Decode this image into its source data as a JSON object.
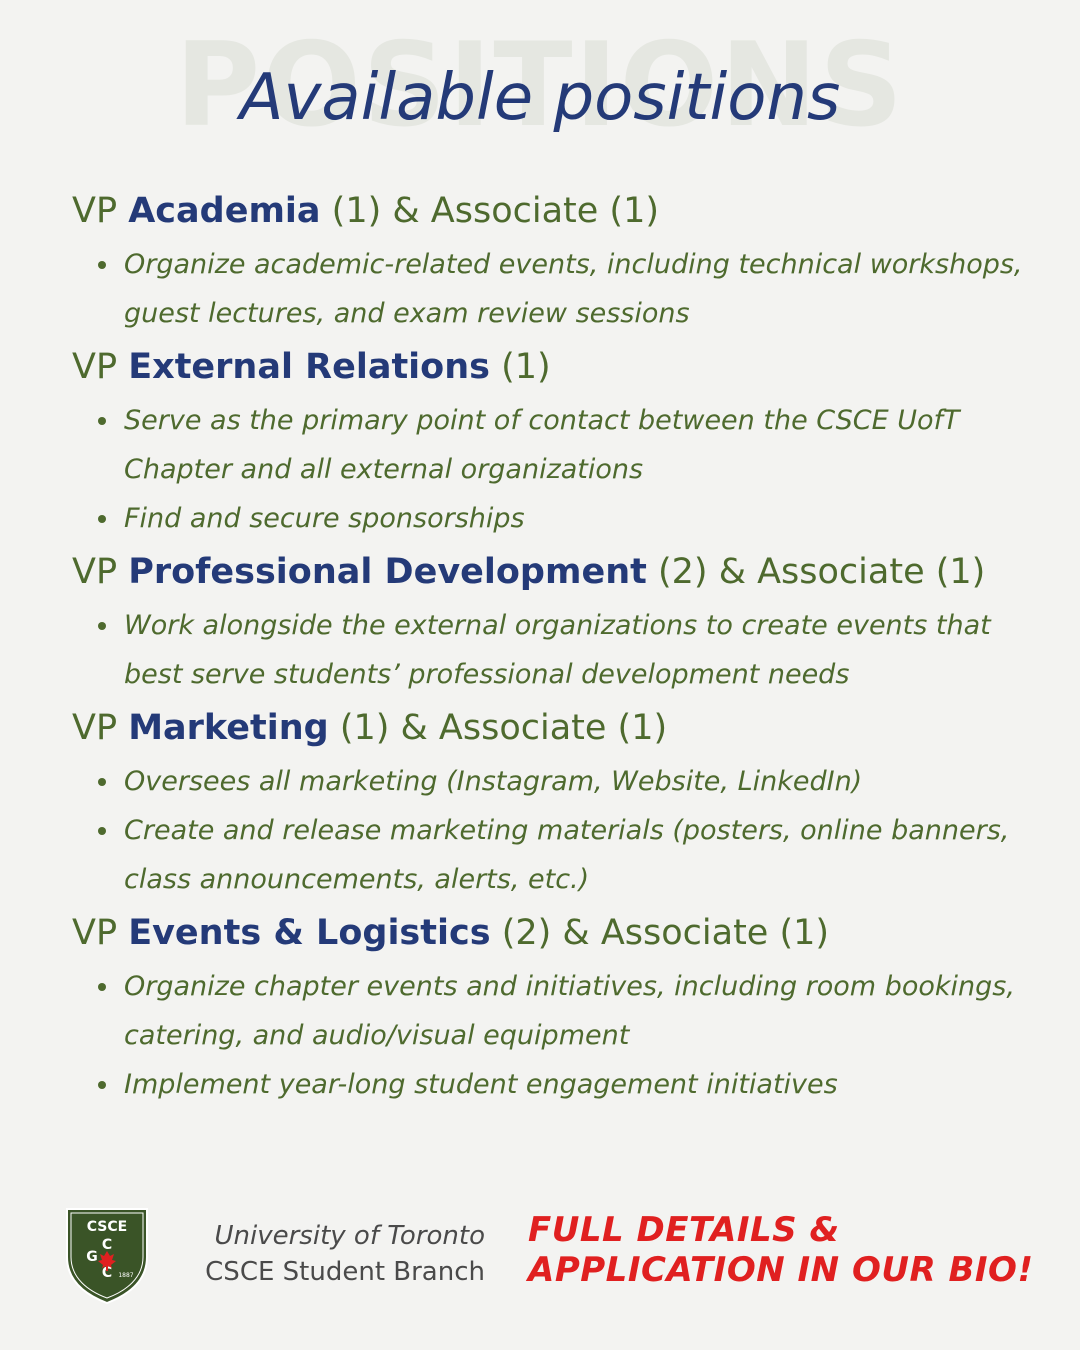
{
  "background_word": "POSITIONS",
  "title": "Available positions",
  "colors": {
    "navy": "#243a78",
    "green": "#4e6a2e",
    "red": "#e02020",
    "background": "#f3f3f1"
  },
  "positions": [
    {
      "prefix": "VP",
      "name": "Academia",
      "count": " (1) & Associate (1)",
      "duties": [
        "Organize academic-related events, including technical workshops, guest lectures, and exam review sessions"
      ]
    },
    {
      "prefix": "VP",
      "name": "External Relations",
      "count": " (1)",
      "duties": [
        "Serve as the primary point of contact between the CSCE UofT Chapter and all external organizations",
        "Find and secure sponsorships"
      ]
    },
    {
      "prefix": "VP",
      "name": "Professional Development",
      "count": " (2) & Associate (1)",
      "duties": [
        "Work alongside the external organizations to create events that best serve students’ professional development needs"
      ]
    },
    {
      "prefix": "VP",
      "name": "Marketing",
      "count": " (1) & Associate (1)",
      "duties": [
        "Oversees all marketing (Instagram, Website, LinkedIn)",
        "Create and release marketing materials (posters, online banners, class announcements, alerts, etc.)"
      ]
    },
    {
      "prefix": "VP",
      "name": "Events & Logistics",
      "count": " (2) & Associate (1)",
      "duties": [
        "Organize chapter events and initiatives, including room bookings, catering, and audio/visual equipment",
        "Implement year-long student engagement initiatives"
      ]
    }
  ],
  "footer": {
    "logo": {
      "line1": "CSCE",
      "line2": "C",
      "line3": "G",
      "line4": "C",
      "year": "1887",
      "icon": "maple-leaf-icon"
    },
    "university": "University of Toronto",
    "branch": "CSCE Student Branch",
    "cta_line1": "FULL DETAILS &",
    "cta_line2": "APPLICATION IN OUR BIO!"
  }
}
